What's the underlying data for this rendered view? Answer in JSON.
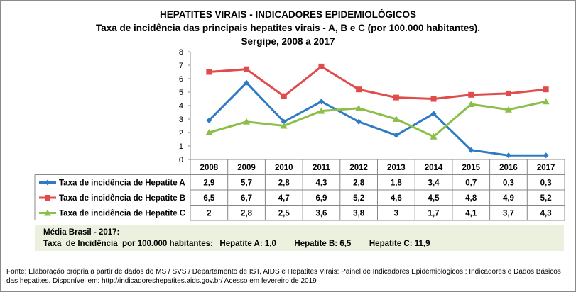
{
  "chart_data": {
    "type": "line",
    "title": "HEPATITES VIRAIS - INDICADORES EPIDEMIOLÓGICOS",
    "subtitle": "Taxa de incidência das principais hepatites virais - A, B e C (por 100.000 habitantes).",
    "subtitle2": "Sergipe, 2008 a 2017",
    "categories": [
      "2008",
      "2009",
      "2010",
      "2011",
      "2012",
      "2013",
      "2014",
      "2015",
      "2016",
      "2017"
    ],
    "ylim": [
      0,
      8
    ],
    "yticks": [
      "0",
      "1",
      "2",
      "3",
      "4",
      "5",
      "6",
      "7",
      "8"
    ],
    "grid": false,
    "legend": "data-table",
    "series": [
      {
        "name": "Taxa de incidência de Hepatite A",
        "color": "#2e7bc4",
        "marker": "diamond",
        "values": [
          2.9,
          5.7,
          2.8,
          4.3,
          2.8,
          1.8,
          3.4,
          0.7,
          0.3,
          0.3
        ],
        "labels": [
          "2,9",
          "5,7",
          "2,8",
          "4,3",
          "2,8",
          "1,8",
          "3,4",
          "0,7",
          "0,3",
          "0,3"
        ]
      },
      {
        "name": "Taxa de incidência de Hepatite B",
        "color": "#e04b4b",
        "marker": "square",
        "values": [
          6.5,
          6.7,
          4.7,
          6.9,
          5.2,
          4.6,
          4.5,
          4.8,
          4.9,
          5.2
        ],
        "labels": [
          "6,5",
          "6,7",
          "4,7",
          "6,9",
          "5,2",
          "4,6",
          "4,5",
          "4,8",
          "4,9",
          "5,2"
        ]
      },
      {
        "name": "Taxa de incidência de Hepatite C",
        "color": "#8cbf4a",
        "marker": "triangle",
        "values": [
          2,
          2.8,
          2.5,
          3.6,
          3.8,
          3,
          1.7,
          4.1,
          3.7,
          4.3
        ],
        "labels": [
          "2",
          "2,8",
          "2,5",
          "3,6",
          "3,8",
          "3",
          "1,7",
          "4,1",
          "3,7",
          "4,3"
        ]
      }
    ]
  },
  "note": {
    "line1": "Média Brasil  - 2017:",
    "line2": "Taxa  de Incidência  por 100.000 habitantes:   Hepatite A: 1,0        Hepatite B: 6,5        Hepatite C: 11,9",
    "bg_color": "#ebf1de"
  },
  "source": "Fonte: Elaboração própria a partir de dados do MS / SVS / Departamento de IST, AIDS e Hepatites Virais:  Painel de Indicadores Epidemiológicos : Indicadores e Dados Básicos das hepatites.  Disponível em: http://indicadoreshepatites.aids.gov.br/      Acesso em fevereiro de 2019"
}
